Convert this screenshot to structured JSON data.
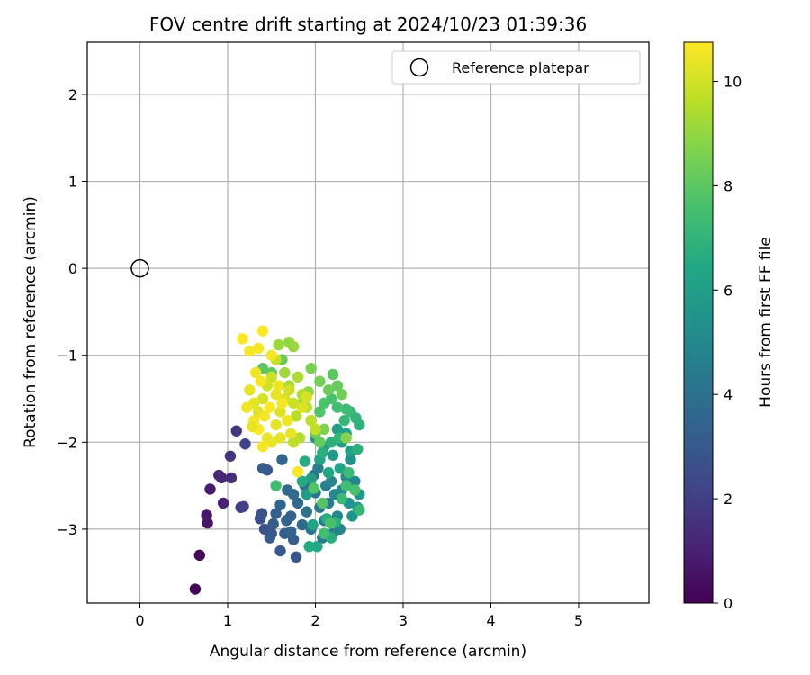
{
  "chart_data": {
    "type": "scatter",
    "title": "FOV centre drift starting at 2024/10/23 01:39:36",
    "xlabel": "Angular distance from reference (arcmin)",
    "ylabel": "Rotation from reference (arcmin)",
    "xlim": [
      -0.6,
      5.8
    ],
    "ylim": [
      -3.85,
      2.6
    ],
    "xticks": [
      0,
      1,
      2,
      3,
      4,
      5
    ],
    "xtick_labels": [
      "0",
      "1",
      "2",
      "3",
      "4",
      "5"
    ],
    "yticks": [
      -3,
      -2,
      -1,
      0,
      1,
      2
    ],
    "ytick_labels": [
      "−3",
      "−2",
      "−1",
      "0",
      "1",
      "2"
    ],
    "grid": true,
    "legend": {
      "position": "top-right",
      "entries": [
        "Reference platepar"
      ]
    },
    "reference_point": {
      "label": "Reference platepar",
      "x": 0,
      "y": 0,
      "marker": "open-circle"
    },
    "colorbar": {
      "label": "Hours from first FF file",
      "min": 0,
      "max": 10.75,
      "ticks": [
        0,
        2,
        4,
        6,
        8,
        10
      ],
      "tick_labels": [
        "0",
        "2",
        "4",
        "6",
        "8",
        "10"
      ],
      "colormap": "viridis"
    },
    "points": [
      [
        0.63,
        -3.69,
        0.1
      ],
      [
        0.68,
        -3.3,
        0.2
      ],
      [
        0.77,
        -2.93,
        0.6
      ],
      [
        0.76,
        -2.84,
        0.7
      ],
      [
        0.8,
        -2.54,
        0.9
      ],
      [
        0.9,
        -2.38,
        1.1
      ],
      [
        0.93,
        -2.41,
        1.2
      ],
      [
        0.95,
        -2.7,
        1.0
      ],
      [
        1.04,
        -2.41,
        1.4
      ],
      [
        1.03,
        -2.16,
        1.6
      ],
      [
        1.1,
        -1.87,
        1.7
      ],
      [
        1.15,
        -2.75,
        1.9
      ],
      [
        1.18,
        -2.74,
        2.0
      ],
      [
        1.2,
        -2.02,
        2.1
      ],
      [
        1.37,
        -2.88,
        2.6
      ],
      [
        1.39,
        -2.82,
        2.8
      ],
      [
        1.42,
        -3.0,
        2.7
      ],
      [
        1.5,
        -3.05,
        2.9
      ],
      [
        1.48,
        -3.1,
        3.0
      ],
      [
        1.52,
        -2.94,
        3.1
      ],
      [
        1.6,
        -3.25,
        3.0
      ],
      [
        1.65,
        -3.05,
        3.2
      ],
      [
        1.75,
        -3.12,
        3.1
      ],
      [
        1.78,
        -3.32,
        2.9
      ],
      [
        1.72,
        -2.85,
        3.3
      ],
      [
        1.67,
        -2.9,
        3.4
      ],
      [
        1.55,
        -2.82,
        3.3
      ],
      [
        1.6,
        -2.72,
        3.5
      ],
      [
        1.8,
        -2.7,
        3.6
      ],
      [
        1.85,
        -2.95,
        3.7
      ],
      [
        1.72,
        -3.03,
        3.4
      ],
      [
        1.4,
        -2.3,
        3.2
      ],
      [
        1.45,
        -2.32,
        3.0
      ],
      [
        1.62,
        -2.2,
        3.5
      ],
      [
        1.68,
        -2.55,
        3.6
      ],
      [
        1.75,
        -2.6,
        3.8
      ],
      [
        1.88,
        -2.5,
        3.9
      ],
      [
        1.9,
        -2.8,
        4.0
      ],
      [
        1.95,
        -3.0,
        4.1
      ],
      [
        2.0,
        -2.58,
        4.2
      ],
      [
        2.05,
        -2.75,
        4.3
      ],
      [
        2.08,
        -3.1,
        4.4
      ],
      [
        2.1,
        -2.9,
        4.5
      ],
      [
        2.15,
        -2.7,
        4.6
      ],
      [
        2.2,
        -3.05,
        4.7
      ],
      [
        2.25,
        -2.85,
        4.8
      ],
      [
        2.28,
        -3.0,
        4.9
      ],
      [
        1.98,
        -2.38,
        4.3
      ],
      [
        2.03,
        -2.3,
        4.5
      ],
      [
        2.12,
        -2.5,
        4.7
      ],
      [
        2.18,
        -2.45,
        4.9
      ],
      [
        2.22,
        -2.6,
        5.0
      ],
      [
        2.3,
        -2.55,
        5.1
      ],
      [
        2.35,
        -2.4,
        5.2
      ],
      [
        2.4,
        -2.2,
        5.3
      ],
      [
        2.45,
        -2.45,
        5.0
      ],
      [
        2.38,
        -2.7,
        5.4
      ],
      [
        2.42,
        -2.85,
        5.5
      ],
      [
        2.48,
        -2.75,
        5.6
      ],
      [
        2.5,
        -2.6,
        5.7
      ],
      [
        2.0,
        -1.95,
        5.5
      ],
      [
        2.1,
        -2.05,
        5.6
      ],
      [
        2.2,
        -2.15,
        5.8
      ],
      [
        2.3,
        -2.0,
        5.9
      ],
      [
        2.25,
        -1.85,
        6.0
      ],
      [
        2.35,
        -1.9,
        6.1
      ],
      [
        2.4,
        -2.1,
        6.2
      ],
      [
        2.28,
        -2.3,
        6.3
      ],
      [
        2.15,
        -2.35,
        6.4
      ],
      [
        2.05,
        -2.2,
        6.2
      ],
      [
        1.95,
        -2.42,
        6.0
      ],
      [
        1.9,
        -2.6,
        5.9
      ],
      [
        1.97,
        -2.95,
        6.3
      ],
      [
        2.02,
        -3.2,
        6.4
      ],
      [
        1.93,
        -3.2,
        6.5
      ],
      [
        2.13,
        -2.88,
        6.6
      ],
      [
        2.18,
        -3.1,
        6.7
      ],
      [
        2.23,
        -2.92,
        6.8
      ],
      [
        1.85,
        -2.45,
        6.5
      ],
      [
        1.88,
        -2.22,
        6.6
      ],
      [
        2.08,
        -2.12,
        6.7
      ],
      [
        2.18,
        -2.0,
        6.8
      ],
      [
        2.27,
        -1.95,
        7.0
      ],
      [
        2.33,
        -1.75,
        7.1
      ],
      [
        2.4,
        -1.65,
        7.2
      ],
      [
        2.46,
        -1.72,
        7.0
      ],
      [
        2.5,
        -1.8,
        6.9
      ],
      [
        2.48,
        -2.08,
        6.8
      ],
      [
        2.35,
        -1.62,
        7.4
      ],
      [
        2.25,
        -1.6,
        7.5
      ],
      [
        2.18,
        -1.5,
        7.6
      ],
      [
        2.1,
        -1.55,
        7.7
      ],
      [
        2.05,
        -1.65,
        7.8
      ],
      [
        1.95,
        -1.75,
        7.9
      ],
      [
        2.38,
        -2.35,
        7.3
      ],
      [
        2.3,
        -2.65,
        7.2
      ],
      [
        2.45,
        -2.55,
        7.6
      ],
      [
        2.35,
        -2.5,
        7.5
      ],
      [
        2.5,
        -2.78,
        7.1
      ],
      [
        1.98,
        -2.53,
        7.8
      ],
      [
        2.08,
        -2.7,
        7.9
      ],
      [
        1.55,
        -2.5,
        7.4
      ],
      [
        2.1,
        -3.05,
        7.5
      ],
      [
        2.17,
        -2.93,
        7.6
      ],
      [
        1.4,
        -1.15,
        8.0
      ],
      [
        1.5,
        -1.2,
        8.1
      ],
      [
        1.62,
        -1.05,
        8.2
      ],
      [
        2.2,
        -1.22,
        8.0
      ],
      [
        2.25,
        -1.35,
        8.2
      ],
      [
        2.3,
        -1.45,
        8.4
      ],
      [
        2.15,
        -1.4,
        8.3
      ],
      [
        2.05,
        -1.3,
        8.5
      ],
      [
        1.95,
        -1.15,
        8.6
      ],
      [
        2.0,
        -1.9,
        8.4
      ],
      [
        2.05,
        -2.0,
        8.2
      ],
      [
        2.1,
        -1.85,
        8.7
      ],
      [
        2.35,
        -1.95,
        8.8
      ],
      [
        1.92,
        -1.42,
        8.9
      ],
      [
        1.85,
        -1.55,
        9.0
      ],
      [
        1.7,
        -0.85,
        9.0
      ],
      [
        1.75,
        -0.9,
        9.1
      ],
      [
        1.58,
        -0.88,
        9.1
      ],
      [
        1.65,
        -1.2,
        9.2
      ],
      [
        1.7,
        -1.35,
        9.3
      ],
      [
        1.8,
        -1.25,
        9.4
      ],
      [
        1.85,
        -1.45,
        9.5
      ],
      [
        1.9,
        -1.6,
        9.6
      ],
      [
        1.95,
        -1.75,
        9.7
      ],
      [
        2.0,
        -1.85,
        9.8
      ],
      [
        1.78,
        -1.7,
        9.6
      ],
      [
        1.82,
        -1.95,
        9.5
      ],
      [
        1.75,
        -2.0,
        9.7
      ],
      [
        1.55,
        -1.05,
        9.8
      ],
      [
        1.5,
        -1.25,
        9.9
      ],
      [
        1.45,
        -1.35,
        10.0
      ],
      [
        1.4,
        -1.5,
        10.1
      ],
      [
        1.35,
        -1.65,
        10.2
      ],
      [
        1.3,
        -1.55,
        10.3
      ],
      [
        1.25,
        -1.4,
        10.4
      ],
      [
        1.22,
        -1.6,
        10.5
      ],
      [
        1.3,
        -1.75,
        10.6
      ],
      [
        1.35,
        -1.85,
        10.7
      ],
      [
        1.45,
        -1.95,
        10.5
      ],
      [
        1.5,
        -2.0,
        10.4
      ],
      [
        1.55,
        -1.8,
        10.3
      ],
      [
        1.6,
        -1.65,
        10.2
      ],
      [
        1.65,
        -1.5,
        10.1
      ],
      [
        1.7,
        -1.4,
        10.0
      ],
      [
        1.75,
        -1.55,
        9.9
      ],
      [
        1.42,
        -1.7,
        10.6
      ],
      [
        1.48,
        -1.6,
        10.7
      ],
      [
        1.38,
        -1.3,
        10.6
      ],
      [
        1.32,
        -1.2,
        10.5
      ],
      [
        1.25,
        -0.95,
        10.6
      ],
      [
        1.17,
        -0.81,
        10.7
      ],
      [
        1.35,
        -0.92,
        10.65
      ],
      [
        1.4,
        -0.72,
        10.7
      ],
      [
        1.5,
        -1.0,
        10.6
      ],
      [
        1.58,
        -1.35,
        10.5
      ],
      [
        1.62,
        -1.55,
        10.6
      ],
      [
        1.68,
        -1.75,
        10.5
      ],
      [
        1.72,
        -1.9,
        10.4
      ],
      [
        1.6,
        -1.95,
        10.3
      ],
      [
        1.4,
        -2.05,
        10.6
      ],
      [
        1.8,
        -2.34,
        10.7
      ],
      [
        1.85,
        -1.6,
        10.2
      ],
      [
        1.9,
        -1.48,
        10.1
      ],
      [
        1.28,
        -1.82,
        10.4
      ],
      [
        1.55,
        -1.45,
        10.4
      ]
    ]
  }
}
